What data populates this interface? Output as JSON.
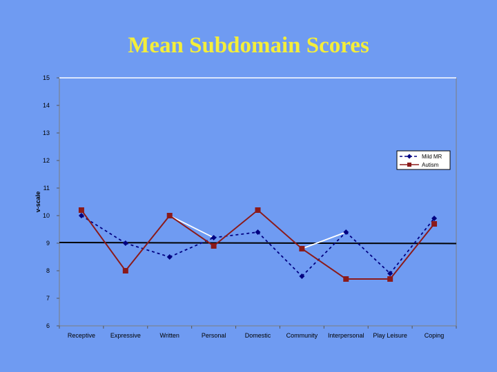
{
  "slide": {
    "title": "Mean Subdomain Scores"
  },
  "chart_data": {
    "type": "line",
    "title": "Mean Subdomain Scores",
    "xlabel": "",
    "ylabel": "v-scale",
    "ylim": [
      6,
      15
    ],
    "yticks": [
      6,
      7,
      8,
      9,
      10,
      11,
      12,
      13,
      14,
      15
    ],
    "grid": false,
    "legend_position": "right",
    "categories": [
      "Receptive",
      "Expressive",
      "Written",
      "Personal",
      "Domestic",
      "Community",
      "Interpersonal",
      "Play Leisure",
      "Coping"
    ],
    "reference_line": 9,
    "series": [
      {
        "name": "Mild MR",
        "values": [
          10.0,
          9.0,
          8.5,
          9.2,
          9.4,
          7.8,
          9.4,
          7.9,
          9.9
        ],
        "color": "#000080",
        "marker": "diamond",
        "line": "dashed"
      },
      {
        "name": "Autism",
        "values": [
          10.2,
          8.0,
          10.0,
          8.9,
          10.2,
          8.8,
          7.7,
          7.7,
          9.7
        ],
        "color": "#8b1a1a",
        "marker": "square",
        "line": "solid"
      }
    ],
    "colors": {
      "background": "#6f9bf2",
      "title": "#f4ee3a",
      "reference_line": "#000000",
      "divergence_line": "#ffffff"
    }
  }
}
